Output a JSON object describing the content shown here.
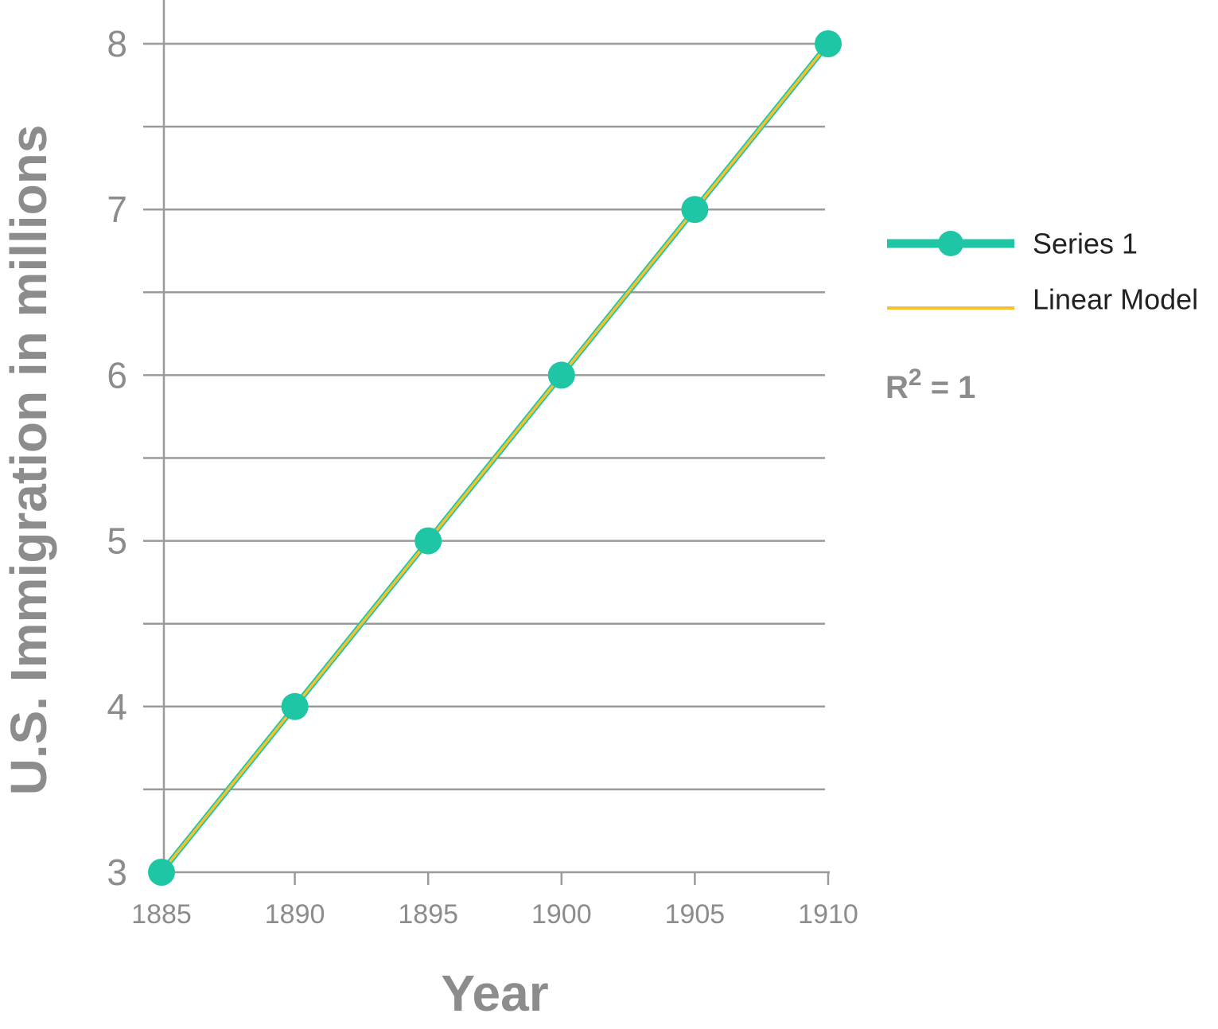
{
  "chart_data": {
    "type": "line",
    "xlabel": "Year",
    "ylabel": "U.S. Immigration in millions",
    "x": [
      1885,
      1890,
      1895,
      1900,
      1905,
      1910
    ],
    "xlim": [
      1885,
      1910
    ],
    "ylim": [
      3,
      8
    ],
    "x_ticks": [
      "1885",
      "1890",
      "1895",
      "1900",
      "1905",
      "1910"
    ],
    "y_ticks": [
      "3",
      "4",
      "5",
      "6",
      "7",
      "8"
    ],
    "grid": "horizontal",
    "legend_position": "right",
    "series": [
      {
        "name": "Series 1",
        "values": [
          3,
          4,
          5,
          6,
          7,
          8
        ],
        "color": "#1ec6a6",
        "markers": true
      },
      {
        "name": "Linear Model",
        "values": [
          3,
          4,
          5,
          6,
          7,
          8
        ],
        "color": "#f5c12e",
        "markers": false
      }
    ],
    "annotation": {
      "prefix": "R",
      "superscript": "2",
      "suffix": " = 1"
    }
  }
}
